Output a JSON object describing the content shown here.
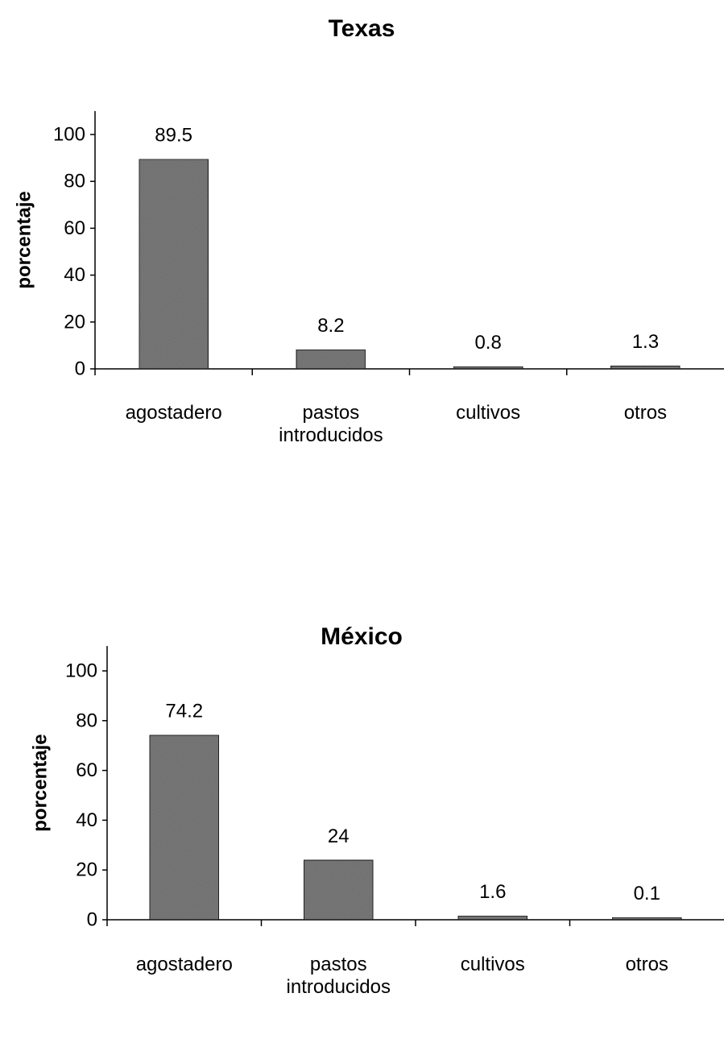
{
  "chart_data": [
    {
      "type": "bar",
      "title": "Texas",
      "ylabel": "porcentaje",
      "xlabel": "",
      "categories": [
        "agostadero",
        "pastos introducidos",
        "cultivos",
        "otros"
      ],
      "values": [
        89.5,
        8.2,
        0.8,
        1.3
      ],
      "data_labels": [
        "89.5",
        "8.2",
        "0.8",
        "1.3"
      ],
      "yticks": [
        0,
        20,
        40,
        60,
        80,
        100
      ],
      "ylim": [
        0,
        110
      ],
      "grid": false,
      "bar_color": "#7a7a7a"
    },
    {
      "type": "bar",
      "title": "México",
      "ylabel": "porcentaje",
      "xlabel": "",
      "categories": [
        "agostadero",
        "pastos introducidos",
        "cultivos",
        "otros"
      ],
      "values": [
        74.2,
        24,
        1.6,
        0.1
      ],
      "data_labels": [
        "74.2",
        "24",
        "1.6",
        "0.1"
      ],
      "yticks": [
        0,
        20,
        40,
        60,
        80,
        100
      ],
      "ylim": [
        0,
        110
      ],
      "grid": false,
      "bar_color": "#7a7a7a"
    }
  ]
}
